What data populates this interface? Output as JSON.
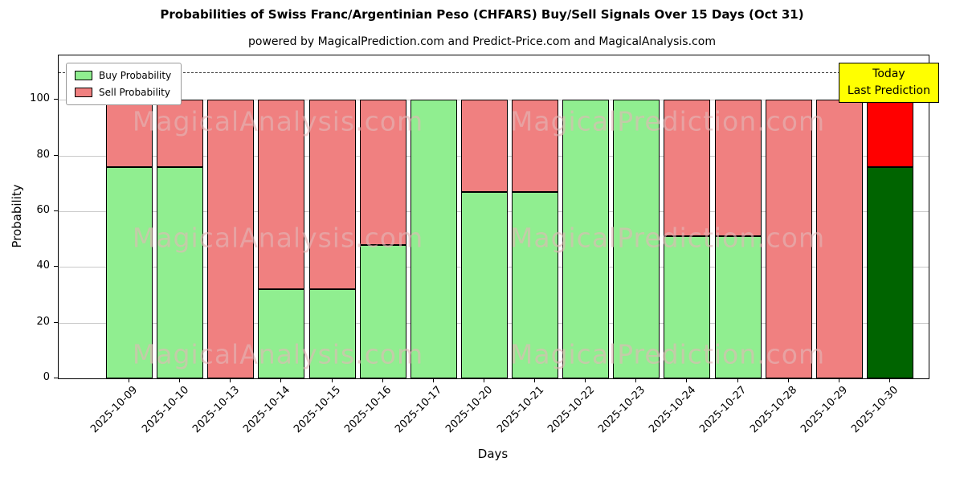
{
  "title": "Probabilities of Swiss Franc/Argentinian Peso (CHFARS) Buy/Sell Signals Over 15 Days (Oct 31)",
  "subtitle": "powered by MagicalPrediction.com and Predict-Price.com and MagicalAnalysis.com",
  "axes": {
    "xlabel": "Days",
    "ylabel": "Probability"
  },
  "legend": {
    "buy_label": "Buy Probability",
    "sell_label": "Sell Probability"
  },
  "annotation": {
    "line1": "Today",
    "line2": "Last Prediction"
  },
  "watermarks": {
    "left": "MagicalAnalysis.com",
    "right": "MagicalPrediction.com"
  },
  "colors": {
    "buy": "#90ee90",
    "sell": "#f08080",
    "today_buy": "#006400",
    "today_sell": "#ff0000",
    "annotation_bg": "#ffff00",
    "bar_edge": "#000000",
    "grid": "#c9c9c9"
  },
  "chart_data": {
    "type": "bar",
    "stacked": true,
    "title": "Probabilities of Swiss Franc/Argentinian Peso (CHFARS) Buy/Sell Signals Over 15 Days (Oct 31)",
    "xlabel": "Days",
    "ylabel": "Probability",
    "ylim": [
      0,
      116
    ],
    "yticks": [
      0,
      20,
      40,
      60,
      80,
      100
    ],
    "dashed_line_y": 110,
    "legend_position": "upper left",
    "grid": true,
    "categories": [
      "2025-10-09",
      "2025-10-10",
      "2025-10-13",
      "2025-10-14",
      "2025-10-15",
      "2025-10-16",
      "2025-10-17",
      "2025-10-20",
      "2025-10-21",
      "2025-10-22",
      "2025-10-23",
      "2025-10-24",
      "2025-10-27",
      "2025-10-28",
      "2025-10-29",
      "2025-10-30"
    ],
    "series": [
      {
        "name": "Buy Probability",
        "values": [
          76,
          76,
          0,
          32,
          32,
          48,
          100,
          67,
          67,
          100,
          100,
          51,
          51,
          0,
          0,
          76
        ]
      },
      {
        "name": "Sell Probability",
        "values": [
          24,
          24,
          100,
          68,
          68,
          52,
          0,
          33,
          33,
          0,
          0,
          49,
          49,
          100,
          100,
          24
        ]
      }
    ],
    "today_index": 15
  }
}
